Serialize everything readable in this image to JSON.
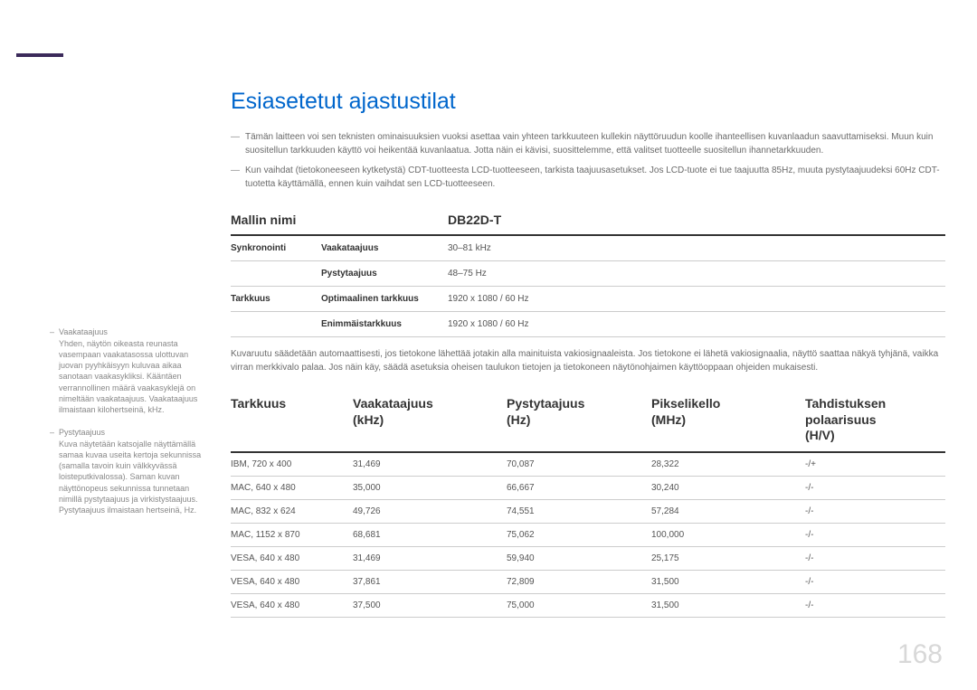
{
  "page_number": "168",
  "title": "Esiasetetut ajastustilat",
  "notes": [
    "Tämän laitteen voi sen teknisten ominaisuuksien vuoksi asettaa vain yhteen tarkkuuteen kullekin näyttöruudun koolle ihanteellisen kuvanlaadun saavuttamiseksi. Muun kuin suositellun tarkkuuden käyttö voi heikentää kuvanlaatua. Jotta näin ei kävisi, suosittelemme, että valitset tuotteelle suositellun ihannetarkkuuden.",
    "Kun vaihdat (tietokoneeseen kytketystä) CDT-tuotteesta LCD-tuotteeseen, tarkista taajuusasetukset. Jos LCD-tuote ei tue taajuutta 85Hz, muuta pystytaajuudeksi 60Hz CDT-tuotetta käyttämällä, ennen kuin vaihdat sen LCD-tuotteeseen."
  ],
  "model_table": {
    "header": {
      "name_label": "Mallin nimi",
      "model": "DB22D-T"
    },
    "rows": [
      {
        "c1": "Synkronointi",
        "c2": "Vaakataajuus",
        "c3": "30–81 kHz"
      },
      {
        "c1": "",
        "c2": "Pystytaajuus",
        "c3": "48–75 Hz"
      },
      {
        "c1": "Tarkkuus",
        "c2": "Optimaalinen tarkkuus",
        "c3": "1920 x 1080 / 60 Hz"
      },
      {
        "c1": "",
        "c2": "Enimmäistarkkuus",
        "c3": "1920 x 1080 / 60 Hz"
      }
    ]
  },
  "description": "Kuvaruutu säädetään automaattisesti, jos tietokone lähettää jotakin alla mainituista vakiosignaaleista. Jos tietokone ei lähetä vakiosignaalia, näyttö saattaa näkyä tyhjänä, vaikka virran merkkivalo palaa. Jos näin käy, säädä asetuksia oheisen taulukon tietojen ja tietokoneen näytönohjaimen käyttöoppaan ohjeiden mukaisesti.",
  "timing_table": {
    "headers": {
      "resolution": "Tarkkuus",
      "hfreq": "Vaakataajuus",
      "hfreq_unit": "(kHz)",
      "vfreq": "Pystytaajuus",
      "vfreq_unit": "(Hz)",
      "pixel": "Pikselikello",
      "pixel_unit": "(MHz)",
      "sync": "Tahdistuksen polaarisuus",
      "sync_unit": "(H/V)"
    },
    "rows": [
      {
        "res": "IBM, 720 x 400",
        "h": "31,469",
        "v": "70,087",
        "p": "28,322",
        "s": "-/+"
      },
      {
        "res": "MAC, 640 x 480",
        "h": "35,000",
        "v": "66,667",
        "p": "30,240",
        "s": "-/-"
      },
      {
        "res": "MAC, 832 x 624",
        "h": "49,726",
        "v": "74,551",
        "p": "57,284",
        "s": "-/-"
      },
      {
        "res": "MAC, 1152 x 870",
        "h": "68,681",
        "v": "75,062",
        "p": "100,000",
        "s": "-/-"
      },
      {
        "res": "VESA, 640 x 480",
        "h": "31,469",
        "v": "59,940",
        "p": "25,175",
        "s": "-/-"
      },
      {
        "res": "VESA, 640 x 480",
        "h": "37,861",
        "v": "72,809",
        "p": "31,500",
        "s": "-/-"
      },
      {
        "res": "VESA, 640 x 480",
        "h": "37,500",
        "v": "75,000",
        "p": "31,500",
        "s": "-/-"
      }
    ]
  },
  "sidebar": {
    "items": [
      {
        "term": "Vaakataajuus",
        "def": "Yhden, näytön oikeasta reunasta vasempaan vaakatasossa ulottuvan juovan pyyhkäisyyn kuluvaa aikaa sanotaan vaakasykliksi. Kääntäen verrannollinen määrä vaakasyklejä on nimeltään vaakataajuus. Vaakataajuus ilmaistaan kilohertseinä, kHz."
      },
      {
        "term": "Pystytaajuus",
        "def": "Kuva näytetään katsojalle näyttämällä samaa kuvaa useita kertoja sekunnissa (samalla tavoin kuin välkkyvässä loisteputkivalossa). Saman kuvan näyttönopeus sekunnissa tunnetaan nimillä pystytaajuus ja virkistystaajuus. Pystytaajuus ilmaistaan hertseinä, Hz."
      }
    ]
  }
}
